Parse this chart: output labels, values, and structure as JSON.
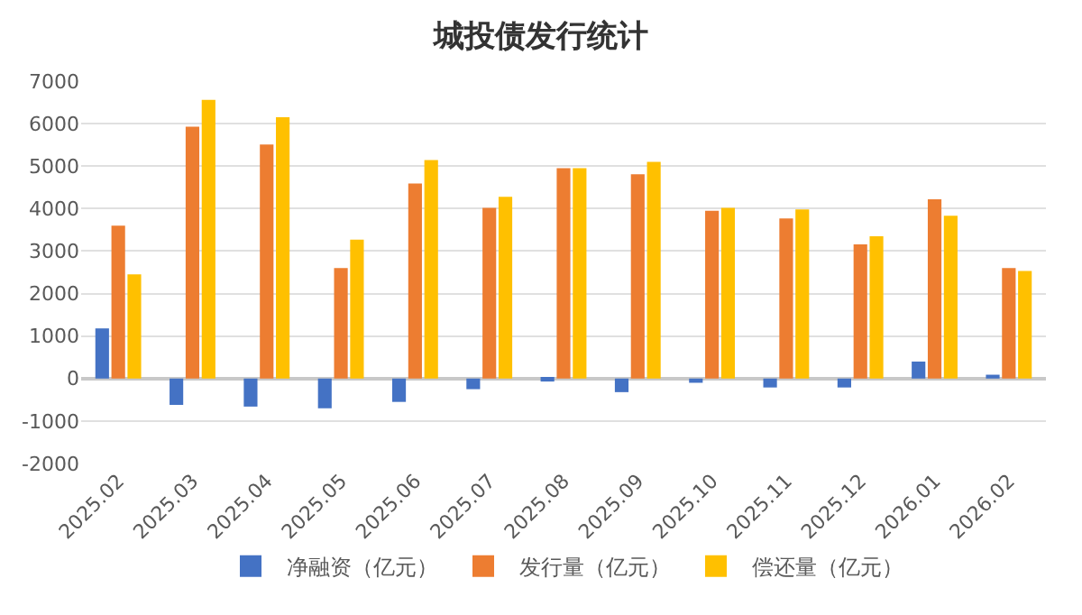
{
  "chart_data": {
    "type": "bar",
    "title": "城投债发行统计",
    "categories": [
      "2025.02",
      "2025.03",
      "2025.04",
      "2025.05",
      "2025.06",
      "2025.07",
      "2025.08",
      "2025.09",
      "2025.10",
      "2025.11",
      "2025.12",
      "2026.01",
      "2026.02"
    ],
    "series": [
      {
        "name": "净融资（亿元）",
        "color": "#4472c4",
        "values": [
          1180,
          -620,
          -660,
          -700,
          -550,
          -250,
          -70,
          -320,
          -100,
          -210,
          -210,
          400,
          90
        ]
      },
      {
        "name": "发行量（亿元）",
        "color": "#ed7d31",
        "values": [
          3600,
          5930,
          5510,
          2600,
          4590,
          4020,
          4950,
          4810,
          3950,
          3770,
          3160,
          4220,
          2600
        ]
      },
      {
        "name": "偿还量（亿元）",
        "color": "#ffc000",
        "values": [
          2450,
          6560,
          6150,
          3270,
          5140,
          4280,
          4950,
          5100,
          4020,
          3980,
          3350,
          3830,
          2530
        ]
      }
    ],
    "ylim": [
      -2000,
      7000
    ],
    "yticks": [
      -2000,
      -1000,
      0,
      1000,
      2000,
      3000,
      4000,
      5000,
      6000,
      7000
    ],
    "grid": "y",
    "legend": "bottom"
  }
}
